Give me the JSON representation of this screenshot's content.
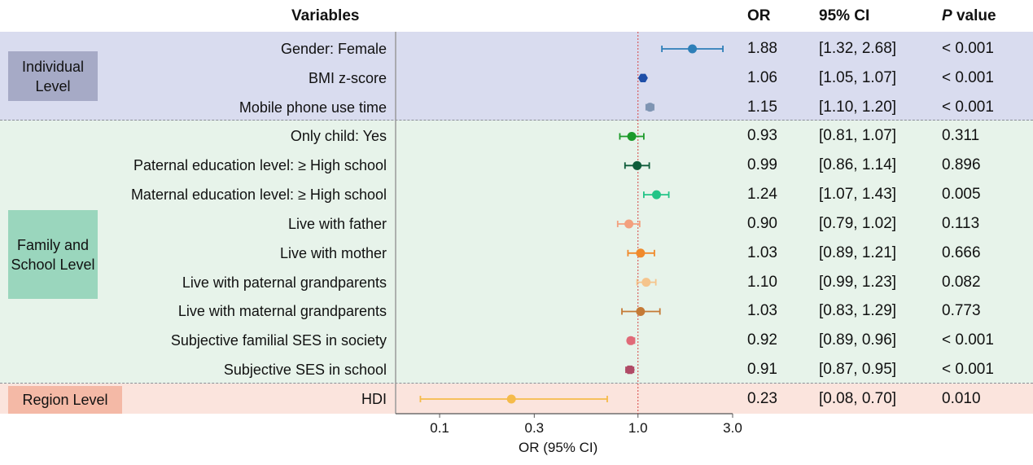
{
  "header": {
    "variables": "Variables",
    "or": "OR",
    "ci": "95% CI",
    "p_italic": "P",
    "p_rest": " value"
  },
  "groups": [
    {
      "label": "Individual Level",
      "bg": "#d9dcef",
      "label_bg": "#a6aac6"
    },
    {
      "label": "Family and School Level",
      "bg": "#e7f3ea",
      "label_bg": "#9ad6bd"
    },
    {
      "label": "Region Level",
      "bg": "#fbe4dd",
      "label_bg": "#f4b9a6"
    }
  ],
  "chart_data": {
    "type": "forest",
    "xlabel": "OR (95% CI)",
    "scale": "log",
    "reference_line": 1.0,
    "xticks": [
      0.1,
      0.3,
      1.0,
      3.0
    ],
    "xtick_labels": [
      "0.1",
      "0.3",
      "1.0",
      "3.0"
    ],
    "xlim": [
      0.06,
      3.0
    ],
    "rows": [
      {
        "label": "Gender: Female",
        "group": 0,
        "or": 1.88,
        "lo": 1.32,
        "hi": 2.68,
        "or_text": "1.88",
        "ci_text": "[1.32, 2.68]",
        "p_text": "< 0.001",
        "color": "#2e7fb8",
        "marker": "circle"
      },
      {
        "label": "BMI z-score",
        "group": 0,
        "or": 1.06,
        "lo": 1.05,
        "hi": 1.07,
        "or_text": "1.06",
        "ci_text": "[1.05, 1.07]",
        "p_text": "< 0.001",
        "color": "#1f4fa8",
        "marker": "hexagon"
      },
      {
        "label": "Mobile phone use time",
        "group": 0,
        "or": 1.15,
        "lo": 1.1,
        "hi": 1.2,
        "or_text": "1.15",
        "ci_text": "[1.10, 1.20]",
        "p_text": "< 0.001",
        "color": "#7f95b3",
        "marker": "circle"
      },
      {
        "label": "Only child: Yes",
        "group": 1,
        "or": 0.93,
        "lo": 0.81,
        "hi": 1.07,
        "or_text": "0.93",
        "ci_text": "[0.81, 1.07]",
        "p_text": "0.311",
        "color": "#1c9a2a",
        "marker": "circle"
      },
      {
        "label": "Paternal education level: ≥ High school",
        "group": 1,
        "or": 0.99,
        "lo": 0.86,
        "hi": 1.14,
        "or_text": "0.99",
        "ci_text": "[0.86, 1.14]",
        "p_text": "0.896",
        "color": "#0e5c3a",
        "marker": "circle"
      },
      {
        "label": "Maternal education level: ≥ High school",
        "group": 1,
        "or": 1.24,
        "lo": 1.07,
        "hi": 1.43,
        "or_text": "1.24",
        "ci_text": "[1.07, 1.43]",
        "p_text": "0.005",
        "color": "#22c487",
        "marker": "circle"
      },
      {
        "label": "Live with father",
        "group": 1,
        "or": 0.9,
        "lo": 0.79,
        "hi": 1.02,
        "or_text": "0.90",
        "ci_text": "[0.79, 1.02]",
        "p_text": "0.113",
        "color": "#f3a07e",
        "marker": "circle"
      },
      {
        "label": "Live with mother",
        "group": 1,
        "or": 1.03,
        "lo": 0.89,
        "hi": 1.21,
        "or_text": "1.03",
        "ci_text": "[0.89, 1.21]",
        "p_text": "0.666",
        "color": "#f08a2c",
        "marker": "circle"
      },
      {
        "label": "Live with paternal grandparents",
        "group": 1,
        "or": 1.1,
        "lo": 0.99,
        "hi": 1.23,
        "or_text": "1.10",
        "ci_text": "[0.99, 1.23]",
        "p_text": "0.082",
        "color": "#f5c48c",
        "marker": "circle"
      },
      {
        "label": "Live with maternal grandparents",
        "group": 1,
        "or": 1.03,
        "lo": 0.83,
        "hi": 1.29,
        "or_text": "1.03",
        "ci_text": "[0.83, 1.29]",
        "p_text": "0.773",
        "color": "#c57a36",
        "marker": "circle"
      },
      {
        "label": "Subjective familial SES in society",
        "group": 1,
        "or": 0.92,
        "lo": 0.89,
        "hi": 0.96,
        "or_text": "0.92",
        "ci_text": "[0.89, 0.96]",
        "p_text": "< 0.001",
        "color": "#e06a78",
        "marker": "circle"
      },
      {
        "label": "Subjective SES in school",
        "group": 1,
        "or": 0.91,
        "lo": 0.87,
        "hi": 0.95,
        "or_text": "0.91",
        "ci_text": "[0.87, 0.95]",
        "p_text": "< 0.001",
        "color": "#b04a66",
        "marker": "hexagon"
      },
      {
        "label": "HDI",
        "group": 2,
        "or": 0.23,
        "lo": 0.08,
        "hi": 0.7,
        "or_text": "0.23",
        "ci_text": "[0.08, 0.70]",
        "p_text": "0.010",
        "color": "#f5bb4a",
        "marker": "circle"
      }
    ]
  }
}
